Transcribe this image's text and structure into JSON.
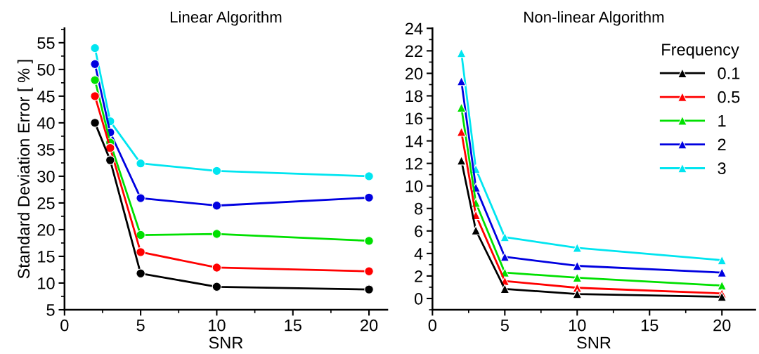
{
  "chart_data": [
    {
      "type": "line",
      "title": "Linear Algorithm",
      "xlabel": "SNR",
      "ylabel": "Standard Deviation Error [ % ]",
      "x": [
        2,
        3,
        5,
        10,
        20
      ],
      "xlim": [
        0,
        21.2
      ],
      "xticks": [
        0,
        5,
        10,
        15,
        20
      ],
      "ylim": [
        5,
        57.7
      ],
      "yticks": [
        5,
        10,
        15,
        20,
        25,
        30,
        35,
        40,
        45,
        50,
        55
      ],
      "marker": "circle",
      "grid": false,
      "legend": false,
      "series": [
        {
          "color": "#000000",
          "values": [
            40.0,
            33.0,
            11.8,
            9.3,
            8.8
          ]
        },
        {
          "color": "#ff0000",
          "values": [
            45.0,
            35.3,
            15.8,
            12.9,
            12.2
          ]
        },
        {
          "color": "#00e000",
          "values": [
            48.0,
            36.3,
            19.0,
            19.2,
            17.9
          ]
        },
        {
          "color": "#0000e0",
          "values": [
            51.0,
            38.2,
            25.9,
            24.5,
            26.0
          ]
        },
        {
          "color": "#00e5f0",
          "values": [
            54.0,
            40.3,
            32.4,
            31.0,
            30.0
          ]
        }
      ]
    },
    {
      "type": "line",
      "title": "Non-linear Algorithm",
      "xlabel": "SNR",
      "x": [
        2,
        3,
        5,
        10,
        20
      ],
      "xlim": [
        0,
        22.3
      ],
      "xticks": [
        0,
        5,
        10,
        15,
        20
      ],
      "ylim": [
        -1,
        24
      ],
      "yticks": [
        0,
        2,
        4,
        6,
        8,
        10,
        12,
        14,
        16,
        18,
        20,
        22,
        24
      ],
      "marker": "triangle",
      "grid": false,
      "legend": "top right",
      "legend_title": "Frequency",
      "series": [
        {
          "name": "0.1",
          "color": "#000000",
          "values": [
            12.25,
            6.05,
            0.85,
            0.4,
            0.15
          ]
        },
        {
          "name": "0.5",
          "color": "#ff0000",
          "values": [
            14.8,
            7.4,
            1.55,
            0.95,
            0.45
          ]
        },
        {
          "name": "1",
          "color": "#00e000",
          "values": [
            16.95,
            8.5,
            2.3,
            1.85,
            1.15
          ]
        },
        {
          "name": "2",
          "color": "#0000e0",
          "values": [
            19.3,
            9.85,
            3.7,
            2.9,
            2.3
          ]
        },
        {
          "name": "3",
          "color": "#00e5f0",
          "values": [
            21.8,
            11.5,
            5.45,
            4.5,
            3.4
          ]
        }
      ]
    }
  ]
}
